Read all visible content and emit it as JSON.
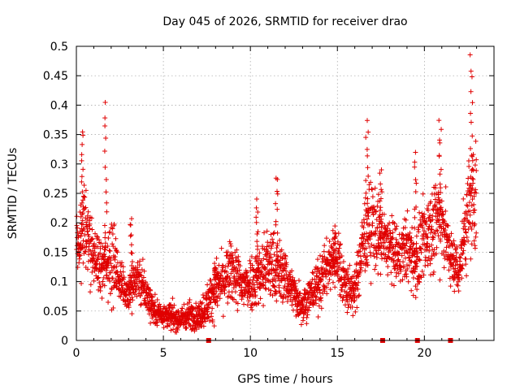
{
  "chart_data": {
    "type": "scatter",
    "title": "Day 045 of 2026, SRMTID for receiver drao",
    "xlabel": "GPS time / hours",
    "ylabel": "SRMTID / TECUs",
    "xlim": [
      0,
      24
    ],
    "ylim": [
      0,
      0.5
    ],
    "grid": true,
    "marker": "plus",
    "color": "#e00000",
    "xticks": [
      0,
      5,
      10,
      15,
      20
    ],
    "xtick_labels": [
      "0",
      "5",
      "10",
      "15",
      "20"
    ],
    "yticks": [
      0,
      0.05,
      0.1,
      0.15,
      0.2,
      0.25,
      0.3,
      0.35,
      0.4,
      0.45,
      0.5
    ],
    "ytick_labels": [
      "0",
      "0.05",
      "0.1",
      "0.15",
      "0.2",
      "0.25",
      "0.3",
      "0.35",
      "0.4",
      "0.45",
      "0.5"
    ],
    "gap_markers_x": [
      7.6,
      17.6,
      19.6,
      21.5
    ],
    "envelope": {
      "x": [
        0.0,
        0.5,
        1.0,
        1.5,
        2.0,
        2.5,
        3.0,
        3.5,
        4.0,
        4.5,
        5.0,
        5.5,
        6.0,
        6.5,
        7.0,
        7.5,
        8.0,
        8.5,
        9.0,
        9.5,
        10.0,
        10.5,
        11.0,
        11.5,
        12.0,
        12.5,
        13.0,
        13.5,
        14.0,
        14.5,
        15.0,
        15.5,
        16.0,
        16.5,
        17.0,
        17.5,
        18.0,
        18.5,
        19.0,
        19.5,
        20.0,
        20.5,
        21.0,
        21.5,
        22.0,
        22.5,
        23.0
      ],
      "center": [
        0.16,
        0.19,
        0.14,
        0.12,
        0.15,
        0.1,
        0.08,
        0.11,
        0.08,
        0.05,
        0.045,
        0.04,
        0.035,
        0.045,
        0.04,
        0.06,
        0.09,
        0.1,
        0.12,
        0.09,
        0.1,
        0.11,
        0.13,
        0.12,
        0.11,
        0.08,
        0.06,
        0.08,
        0.1,
        0.13,
        0.14,
        0.09,
        0.08,
        0.17,
        0.2,
        0.17,
        0.16,
        0.14,
        0.16,
        0.13,
        0.17,
        0.2,
        0.21,
        0.14,
        0.12,
        0.22,
        0.26
      ],
      "spread": [
        0.04,
        0.07,
        0.04,
        0.04,
        0.07,
        0.03,
        0.03,
        0.04,
        0.03,
        0.02,
        0.02,
        0.02,
        0.02,
        0.02,
        0.02,
        0.03,
        0.04,
        0.04,
        0.05,
        0.04,
        0.04,
        0.05,
        0.06,
        0.05,
        0.04,
        0.03,
        0.03,
        0.03,
        0.04,
        0.04,
        0.05,
        0.04,
        0.03,
        0.06,
        0.07,
        0.05,
        0.05,
        0.04,
        0.05,
        0.05,
        0.06,
        0.07,
        0.07,
        0.04,
        0.04,
        0.08,
        0.09
      ]
    },
    "peaks": [
      {
        "x": 0.35,
        "y": 0.36
      },
      {
        "x": 1.7,
        "y": 0.4
      },
      {
        "x": 3.15,
        "y": 0.21
      },
      {
        "x": 8.0,
        "y": 0.13
      },
      {
        "x": 10.4,
        "y": 0.24
      },
      {
        "x": 11.5,
        "y": 0.28
      },
      {
        "x": 14.8,
        "y": 0.19
      },
      {
        "x": 16.7,
        "y": 0.37
      },
      {
        "x": 17.5,
        "y": 0.29
      },
      {
        "x": 19.5,
        "y": 0.32
      },
      {
        "x": 20.9,
        "y": 0.37
      },
      {
        "x": 22.7,
        "y": 0.48
      }
    ]
  }
}
